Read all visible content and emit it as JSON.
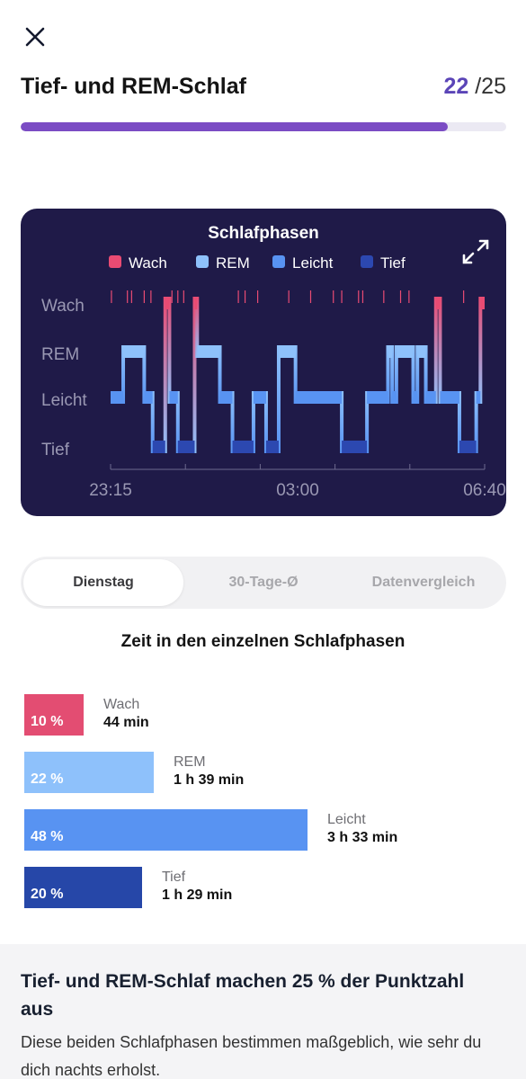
{
  "header": {
    "title": "Tief- und REM-Schlaf",
    "step_current": "22",
    "step_total": "/25",
    "progress_fraction": 0.88
  },
  "chart_data": {
    "type": "area",
    "title": "Schlafphasen",
    "legend": [
      {
        "name": "Wach",
        "color": "#e94b73"
      },
      {
        "name": "REM",
        "color": "#8ec1fb"
      },
      {
        "name": "Leicht",
        "color": "#5893f2"
      },
      {
        "name": "Tief",
        "color": "#2c48b0"
      }
    ],
    "y_levels": [
      "Wach",
      "REM",
      "Leicht",
      "Tief"
    ],
    "x_ticks": [
      "23:15",
      "03:00",
      "06:40"
    ],
    "x_range": [
      "23:15",
      "06:40"
    ],
    "hypnogram": [
      {
        "start": "23:15",
        "end": "23:30",
        "stage": "Leicht"
      },
      {
        "start": "23:30",
        "end": "23:55",
        "stage": "REM"
      },
      {
        "start": "23:55",
        "end": "00:05",
        "stage": "Leicht"
      },
      {
        "start": "00:05",
        "end": "00:20",
        "stage": "Tief"
      },
      {
        "start": "00:20",
        "end": "00:25",
        "stage": "Wach"
      },
      {
        "start": "00:25",
        "end": "00:35",
        "stage": "Leicht"
      },
      {
        "start": "00:35",
        "end": "00:55",
        "stage": "Tief"
      },
      {
        "start": "00:55",
        "end": "00:58",
        "stage": "Wach"
      },
      {
        "start": "00:58",
        "end": "01:25",
        "stage": "REM"
      },
      {
        "start": "01:25",
        "end": "01:40",
        "stage": "Leicht"
      },
      {
        "start": "01:40",
        "end": "02:05",
        "stage": "Tief"
      },
      {
        "start": "02:05",
        "end": "02:20",
        "stage": "Leicht"
      },
      {
        "start": "02:20",
        "end": "02:35",
        "stage": "Tief"
      },
      {
        "start": "02:35",
        "end": "02:55",
        "stage": "REM"
      },
      {
        "start": "02:55",
        "end": "03:50",
        "stage": "Leicht"
      },
      {
        "start": "03:50",
        "end": "04:20",
        "stage": "Tief"
      },
      {
        "start": "04:20",
        "end": "04:45",
        "stage": "Leicht"
      },
      {
        "start": "04:45",
        "end": "04:50",
        "stage": "REM"
      },
      {
        "start": "04:50",
        "end": "04:55",
        "stage": "Leicht"
      },
      {
        "start": "04:55",
        "end": "05:15",
        "stage": "REM"
      },
      {
        "start": "05:15",
        "end": "05:20",
        "stage": "Leicht"
      },
      {
        "start": "05:20",
        "end": "05:30",
        "stage": "REM"
      },
      {
        "start": "05:30",
        "end": "05:42",
        "stage": "Leicht"
      },
      {
        "start": "05:42",
        "end": "05:47",
        "stage": "Wach"
      },
      {
        "start": "05:47",
        "end": "06:10",
        "stage": "Leicht"
      },
      {
        "start": "06:10",
        "end": "06:30",
        "stage": "Tief"
      },
      {
        "start": "06:30",
        "end": "06:35",
        "stage": "Leicht"
      },
      {
        "start": "06:35",
        "end": "06:40",
        "stage": "Wach"
      }
    ],
    "wake_ticks": [
      "23:16",
      "23:35",
      "23:40",
      "23:55",
      "00:03",
      "00:28",
      "00:35",
      "00:42",
      "01:47",
      "01:55",
      "02:10",
      "02:47",
      "03:13",
      "03:40",
      "03:50",
      "04:10",
      "04:15",
      "04:40",
      "05:00",
      "05:10",
      "06:15"
    ]
  },
  "tabs": [
    "Dienstag",
    "30-Tage-Ø",
    "Datenvergleich"
  ],
  "active_tab": 0,
  "section_title": "Zeit in den einzelnen Schlafphasen",
  "phases": [
    {
      "name": "Wach",
      "percent_label": "10 %",
      "duration": "44 min",
      "fraction": 0.1,
      "color": "#e34d72"
    },
    {
      "name": "REM",
      "percent_label": "22 %",
      "duration": "1 h 39 min",
      "fraction": 0.22,
      "color": "#8ec1fb"
    },
    {
      "name": "Leicht",
      "percent_label": "48 %",
      "duration": "3 h 33 min",
      "fraction": 0.48,
      "color": "#5893f2"
    },
    {
      "name": "Tief",
      "percent_label": "20 %",
      "duration": "1 h 29 min",
      "fraction": 0.2,
      "color": "#2647a8"
    }
  ],
  "info": {
    "title": "Tief- und REM-Schlaf machen 25 % der Punktzahl aus",
    "body": "Diese beiden Schlafphasen bestimmen maßgeblich, wie sehr du dich nachts erholst."
  }
}
